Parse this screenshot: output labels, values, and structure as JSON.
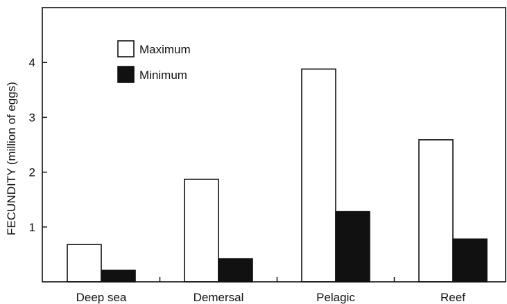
{
  "chart_data": {
    "type": "bar",
    "title": "",
    "xlabel": "",
    "ylabel": "FECUNDITY (million of eggs)",
    "categories": [
      "Deep sea",
      "Demersal",
      "Pelagic",
      "Reef"
    ],
    "series": [
      {
        "name": "Maximum",
        "values": [
          0.68,
          1.87,
          3.88,
          2.59
        ],
        "color": "#ffffff",
        "stroke": "#111111"
      },
      {
        "name": "Minimum",
        "values": [
          0.21,
          0.42,
          1.28,
          0.78
        ],
        "color": "#111111",
        "stroke": "#111111"
      }
    ],
    "ylim": [
      0,
      5
    ],
    "yticks": [
      1,
      2,
      3,
      4
    ],
    "grid": false,
    "legend": "top-left"
  }
}
